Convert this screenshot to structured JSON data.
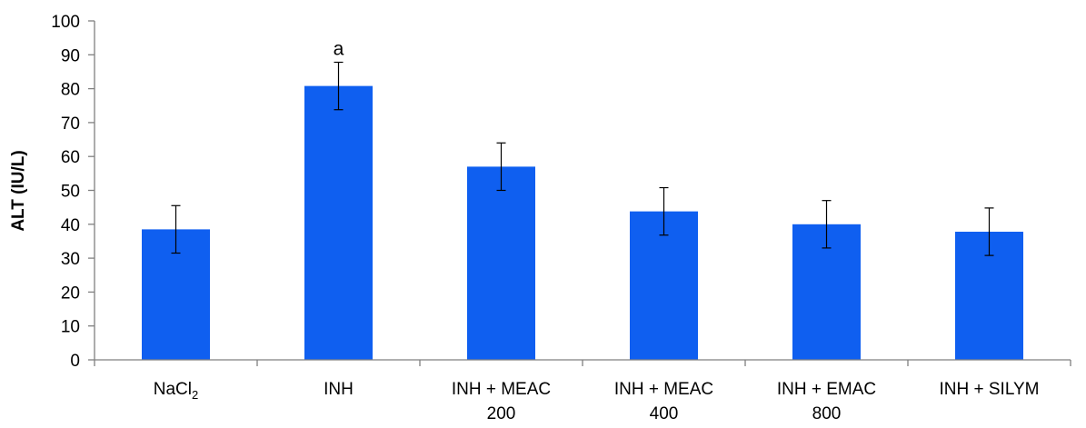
{
  "chart_data": {
    "type": "bar",
    "categories": [
      "NaCl2",
      "INH",
      "INH + MEAC 200",
      "INH + MEAC 400",
      "INH + EMAC 800",
      "INH + SILYM"
    ],
    "category_labels": [
      {
        "lines": [
          "NaCl"
        ],
        "subscript": "2"
      },
      {
        "lines": [
          "INH"
        ]
      },
      {
        "lines": [
          "INH + MEAC",
          "200"
        ]
      },
      {
        "lines": [
          "INH + MEAC",
          "400"
        ]
      },
      {
        "lines": [
          "INH + EMAC",
          "800"
        ]
      },
      {
        "lines": [
          "INH + SILYM"
        ]
      }
    ],
    "values": [
      38.5,
      80.8,
      57.0,
      43.8,
      40.0,
      37.8
    ],
    "errors": [
      7.0,
      7.0,
      7.0,
      7.0,
      7.0,
      7.0
    ],
    "annotations": [
      {
        "category_index": 1,
        "text": "a"
      }
    ],
    "ylabel": "ALT (IU/L)",
    "ylim": [
      0,
      100
    ],
    "yticks": [
      0,
      10,
      20,
      30,
      40,
      50,
      60,
      70,
      80,
      90,
      100
    ],
    "grid": false,
    "colors": {
      "bar": "#0f5ff0",
      "axis": "#808080",
      "error": "#000000"
    }
  }
}
